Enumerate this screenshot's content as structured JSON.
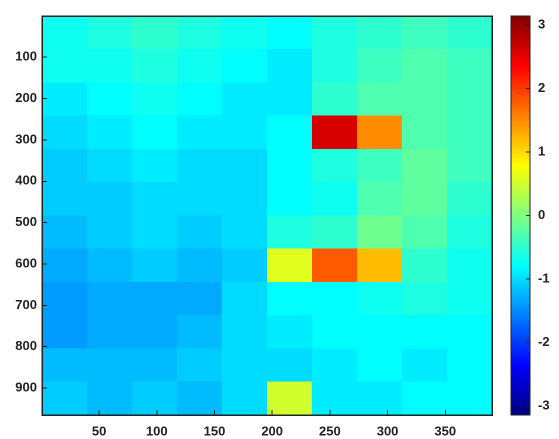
{
  "chart_data": {
    "type": "heatmap",
    "x": [
      20,
      59,
      98,
      137,
      176,
      215,
      254,
      293,
      332,
      371
    ],
    "y": [
      40,
      121,
      201,
      282,
      362,
      442,
      523,
      603,
      683,
      764,
      844,
      925
    ],
    "values": [
      [
        -0.7,
        -0.6,
        -0.5,
        -0.6,
        -0.7,
        -0.8,
        -0.6,
        -0.5,
        -0.4,
        -0.5
      ],
      [
        -0.7,
        -0.7,
        -0.6,
        -0.7,
        -0.8,
        -0.9,
        -0.6,
        -0.4,
        -0.3,
        -0.4
      ],
      [
        -0.9,
        -0.8,
        -0.7,
        -0.8,
        -0.9,
        -0.9,
        -0.5,
        -0.3,
        -0.3,
        -0.4
      ],
      [
        -1.0,
        -0.9,
        -0.8,
        -0.9,
        -0.9,
        -0.8,
        2.6,
        1.5,
        -0.3,
        -0.4
      ],
      [
        -1.1,
        -1.0,
        -0.9,
        -1.0,
        -1.0,
        -0.8,
        -0.6,
        -0.4,
        -0.2,
        -0.4
      ],
      [
        -1.1,
        -1.1,
        -1.0,
        -1.0,
        -1.0,
        -0.8,
        -0.7,
        -0.3,
        -0.2,
        -0.5
      ],
      [
        -1.2,
        -1.1,
        -1.0,
        -1.1,
        -1.0,
        -0.6,
        -0.5,
        -0.1,
        -0.3,
        -0.6
      ],
      [
        -1.3,
        -1.2,
        -1.1,
        -1.2,
        -1.1,
        0.6,
        1.8,
        1.2,
        -0.5,
        -0.7
      ],
      [
        -1.4,
        -1.3,
        -1.3,
        -1.3,
        -1.0,
        -0.8,
        -0.8,
        -0.7,
        -0.6,
        -0.7
      ],
      [
        -1.4,
        -1.3,
        -1.3,
        -1.2,
        -1.0,
        -0.9,
        -0.8,
        -0.8,
        -0.8,
        -0.8
      ],
      [
        -1.2,
        -1.2,
        -1.2,
        -1.1,
        -1.0,
        -1.0,
        -0.9,
        -0.8,
        -0.9,
        -0.8
      ],
      [
        -1.1,
        -1.2,
        -1.1,
        -1.2,
        -1.0,
        0.5,
        -0.9,
        -0.9,
        -0.8,
        -0.8
      ]
    ],
    "xlim": [
      0.5,
      390.5
    ],
    "xticks": [
      50,
      100,
      150,
      200,
      250,
      300,
      350
    ],
    "ylim": [
      0.5,
      965
    ],
    "yticks": [
      100,
      200,
      300,
      400,
      500,
      600,
      700,
      800,
      900
    ],
    "y_reversed": true,
    "colormap": "jet",
    "clim": [
      -3.14,
      3.14
    ],
    "cticks": [
      -3,
      -2,
      -1,
      0,
      1,
      2,
      3
    ]
  }
}
